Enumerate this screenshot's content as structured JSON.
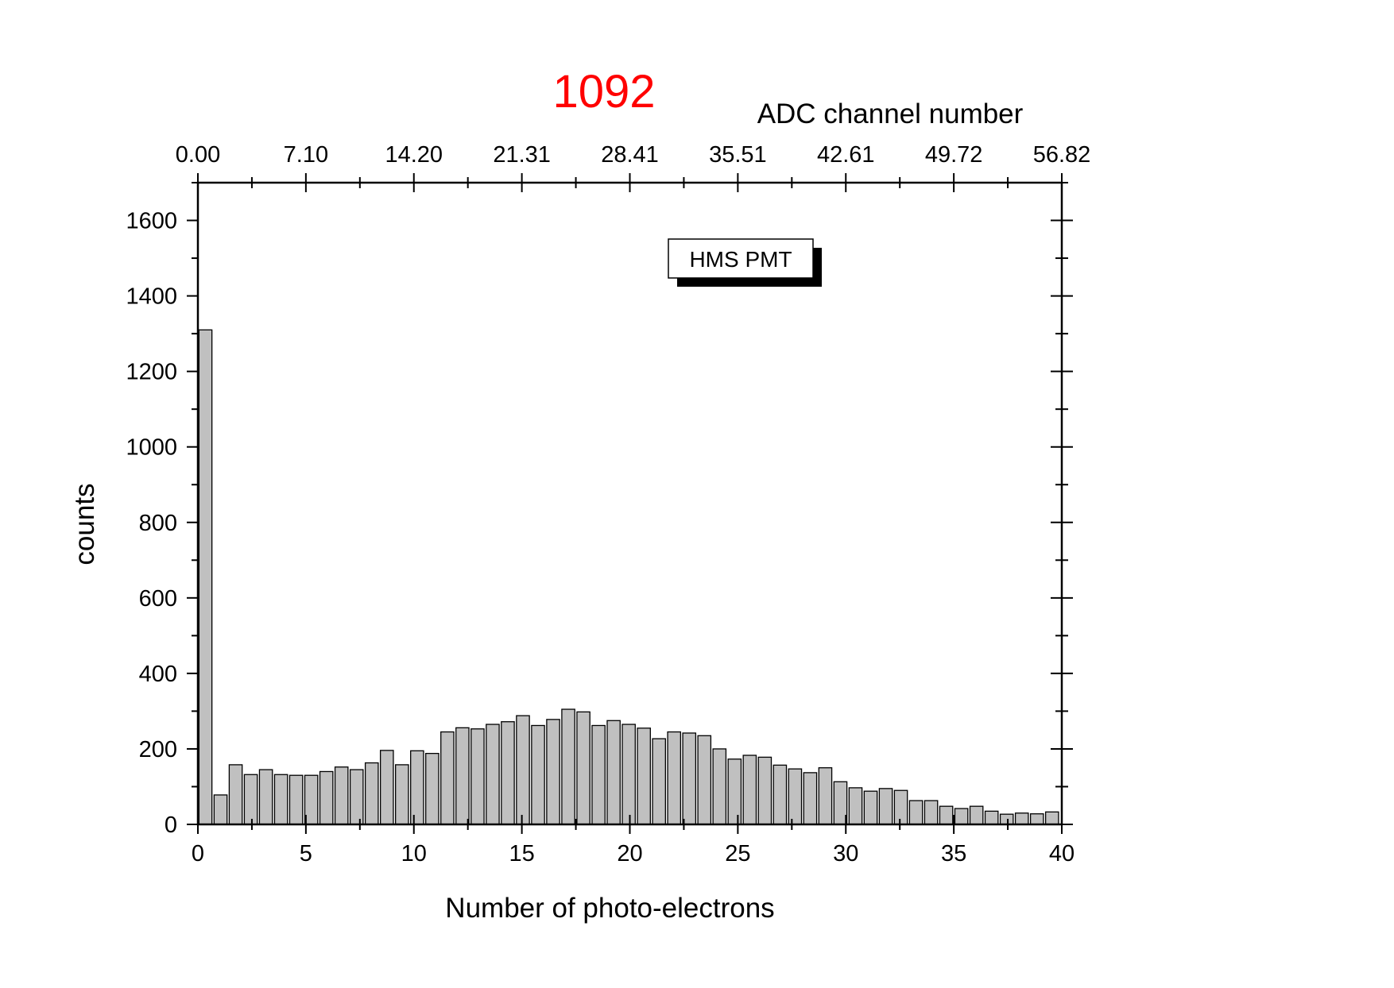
{
  "chart_data": {
    "type": "bar",
    "title": "1092",
    "title_color": "#ff0000",
    "xlabel": "Number of photo-electrons",
    "ylabel": "counts",
    "top_axis_label": "ADC channel number",
    "top_axis_ticks": [
      "0.00",
      "7.10",
      "14.20",
      "21.31",
      "28.41",
      "35.51",
      "42.61",
      "49.72",
      "56.82"
    ],
    "bottom_axis_ticks": [
      "0",
      "5",
      "10",
      "15",
      "20",
      "25",
      "30",
      "35",
      "40"
    ],
    "y_axis_ticks": [
      "0",
      "200",
      "400",
      "600",
      "800",
      "1000",
      "1200",
      "1400",
      "1600"
    ],
    "xlim": [
      0,
      40
    ],
    "ylim": [
      0,
      1700
    ],
    "bar_width": 0.6,
    "bar_color": "#c0c0c0",
    "legend": {
      "label": "HMS PMT",
      "placement": "top-right"
    },
    "x": [
      0.35,
      1.05,
      1.75,
      2.45,
      3.15,
      3.85,
      4.55,
      5.25,
      5.95,
      6.65,
      7.35,
      8.05,
      8.75,
      9.45,
      10.15,
      10.85,
      11.55,
      12.25,
      12.95,
      13.65,
      14.35,
      15.05,
      15.75,
      16.45,
      17.15,
      17.85,
      18.55,
      19.25,
      19.95,
      20.65,
      21.35,
      22.05,
      22.75,
      23.45,
      24.15,
      24.85,
      25.55,
      26.25,
      26.95,
      27.65,
      28.35,
      29.05,
      29.75,
      30.45,
      31.15,
      31.85,
      32.55,
      33.25,
      33.95,
      34.65,
      35.35,
      36.05,
      36.75,
      37.45,
      38.15,
      38.85,
      39.55
    ],
    "values": [
      1310,
      78,
      158,
      132,
      145,
      132,
      130,
      130,
      140,
      152,
      145,
      163,
      196,
      158,
      195,
      188,
      245,
      256,
      253,
      265,
      272,
      288,
      262,
      278,
      305,
      298,
      262,
      275,
      265,
      255,
      227,
      245,
      242,
      235,
      200,
      173,
      183,
      178,
      157,
      147,
      137,
      150,
      113,
      97,
      88,
      95,
      90,
      63,
      63,
      48,
      42,
      48,
      35,
      27,
      30,
      28,
      33
    ]
  }
}
